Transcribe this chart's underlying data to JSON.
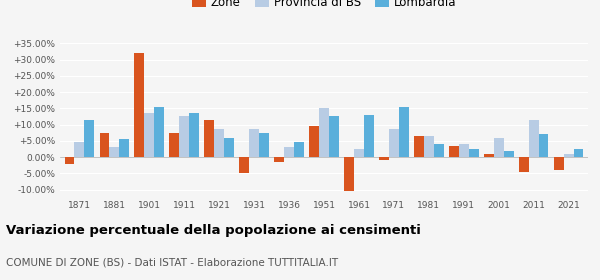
{
  "years": [
    1871,
    1881,
    1901,
    1911,
    1921,
    1931,
    1936,
    1951,
    1961,
    1971,
    1981,
    1991,
    2001,
    2011,
    2021
  ],
  "zone": [
    -2.0,
    7.5,
    32.0,
    7.5,
    11.5,
    -5.0,
    -1.5,
    9.5,
    -10.5,
    -1.0,
    6.5,
    3.5,
    0.8,
    -4.5,
    -4.0
  ],
  "provincia": [
    4.5,
    3.0,
    13.5,
    12.5,
    8.5,
    8.5,
    3.0,
    15.0,
    2.5,
    8.5,
    6.5,
    4.0,
    6.0,
    11.5,
    1.0
  ],
  "lombardia": [
    11.5,
    5.5,
    15.5,
    13.5,
    6.0,
    7.5,
    4.5,
    12.5,
    13.0,
    15.5,
    4.0,
    2.5,
    2.0,
    7.0,
    2.5
  ],
  "zone_color": "#d9541e",
  "provincia_color": "#b8cce4",
  "lombardia_color": "#5aafdb",
  "bg_color": "#f5f5f5",
  "title": "Variazione percentuale della popolazione ai censimenti",
  "subtitle": "COMUNE DI ZONE (BS) - Dati ISTAT - Elaborazione TUTTITALIA.IT",
  "ylim": [
    -12,
    38
  ],
  "yticks": [
    -10,
    -5,
    0,
    5,
    10,
    15,
    20,
    25,
    30,
    35
  ],
  "ytick_labels": [
    "-10.00%",
    "-5.00%",
    "0.00%",
    "+5.00%",
    "+10.00%",
    "+15.00%",
    "+20.00%",
    "+25.00%",
    "+30.00%",
    "+35.00%"
  ]
}
